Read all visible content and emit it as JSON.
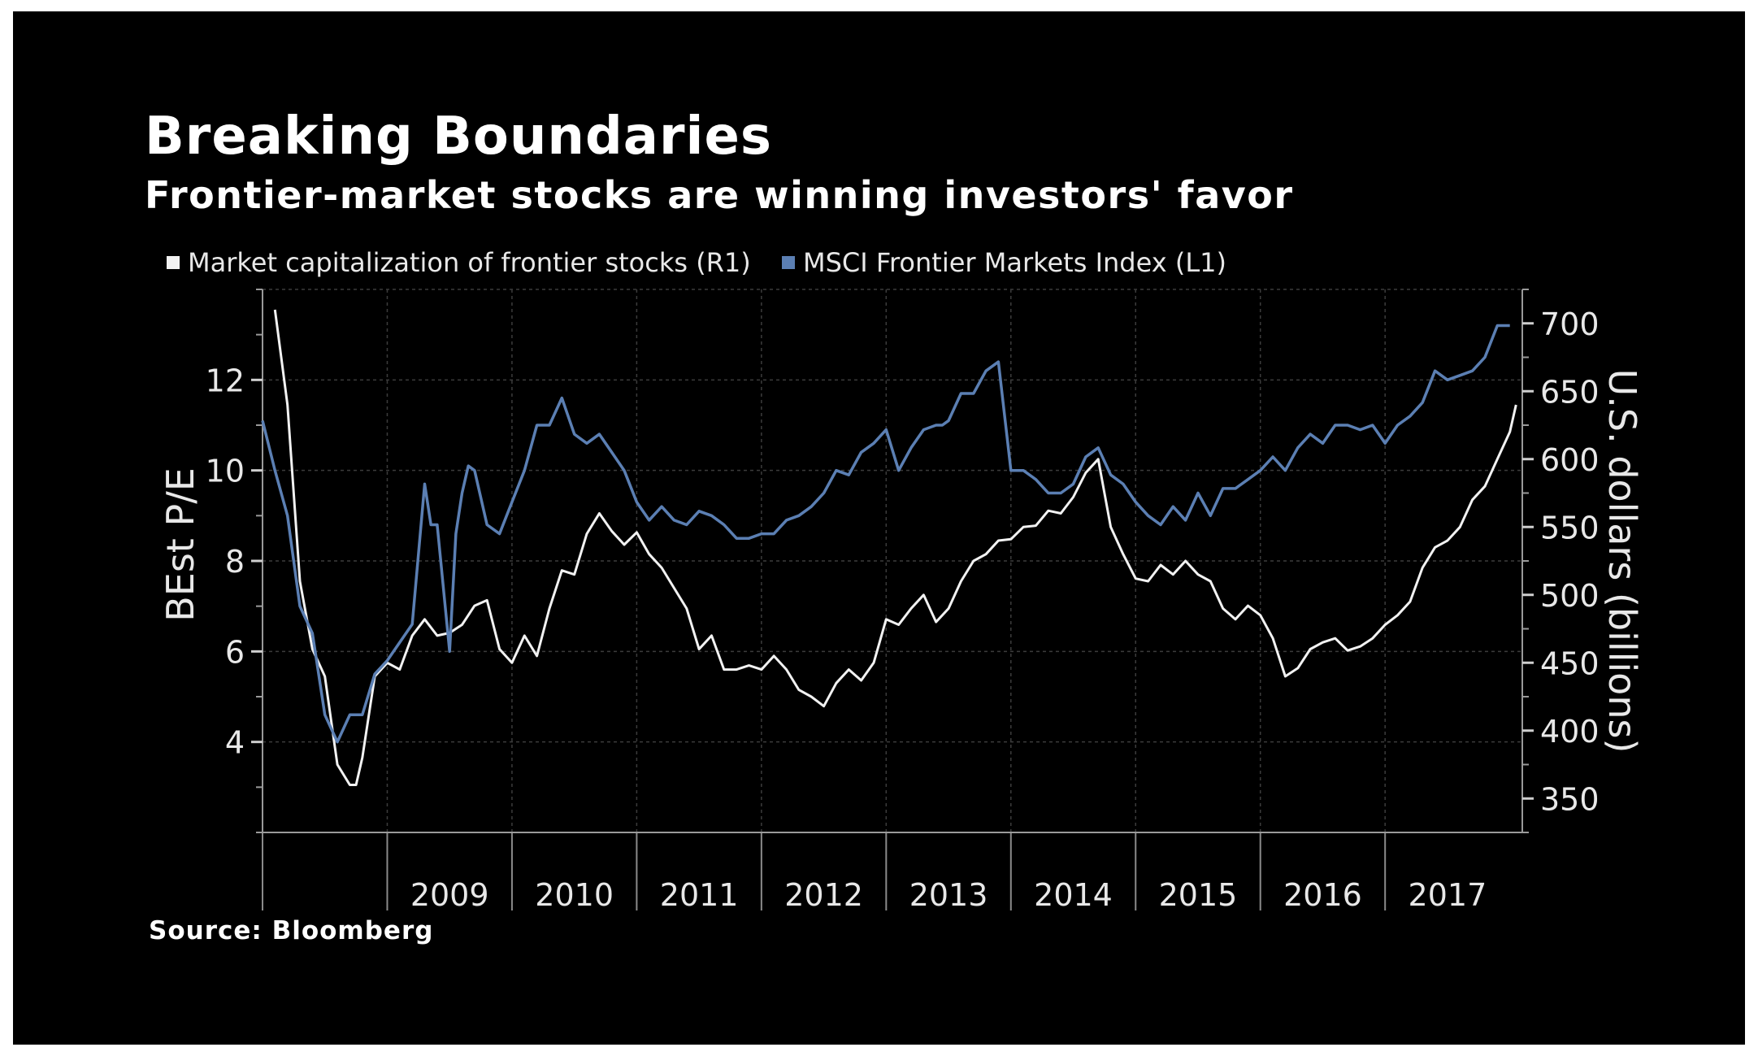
{
  "chart_data": {
    "type": "line",
    "title": "Breaking Boundaries",
    "subtitle": "Frontier-market stocks are winning investors' favor",
    "source": "Source: Bloomberg",
    "left_axis": {
      "label": "BEst P/E",
      "ticks": [
        "4",
        "6",
        "8",
        "10",
        "12"
      ],
      "ylim": [
        2,
        14
      ]
    },
    "right_axis": {
      "label": "U.S. dollars (billions)",
      "ticks": [
        "350",
        "400",
        "450",
        "500",
        "550",
        "600",
        "650",
        "700"
      ],
      "ylim": [
        325,
        725
      ]
    },
    "x_axis": {
      "ticks": [
        "2009",
        "2010",
        "2011",
        "2012",
        "2013",
        "2014",
        "2015",
        "2016",
        "2017"
      ],
      "xlim": [
        2008.0,
        2018.1
      ]
    },
    "grid": true,
    "series": [
      {
        "name": "Market capitalization of frontier stocks (R1)",
        "axis": "right",
        "color": "#f2f2f2",
        "x": [
          2008.1,
          2008.2,
          2008.3,
          2008.4,
          2008.5,
          2008.6,
          2008.7,
          2008.75,
          2008.8,
          2008.9,
          2009.0,
          2009.1,
          2009.2,
          2009.3,
          2009.4,
          2009.5,
          2009.6,
          2009.7,
          2009.8,
          2009.9,
          2010.0,
          2010.1,
          2010.2,
          2010.3,
          2010.4,
          2010.5,
          2010.6,
          2010.7,
          2010.8,
          2010.9,
          2011.0,
          2011.1,
          2011.2,
          2011.3,
          2011.4,
          2011.5,
          2011.6,
          2011.7,
          2011.8,
          2011.9,
          2012.0,
          2012.1,
          2012.2,
          2012.3,
          2012.4,
          2012.5,
          2012.6,
          2012.7,
          2012.8,
          2012.9,
          2013.0,
          2013.1,
          2013.2,
          2013.3,
          2013.4,
          2013.5,
          2013.6,
          2013.7,
          2013.8,
          2013.9,
          2014.0,
          2014.1,
          2014.2,
          2014.3,
          2014.4,
          2014.5,
          2014.6,
          2014.7,
          2014.8,
          2014.9,
          2015.0,
          2015.1,
          2015.2,
          2015.3,
          2015.4,
          2015.5,
          2015.6,
          2015.7,
          2015.8,
          2015.9,
          2016.0,
          2016.1,
          2016.2,
          2016.3,
          2016.4,
          2016.5,
          2016.6,
          2016.7,
          2016.8,
          2016.9,
          2017.0,
          2017.1,
          2017.2,
          2017.3,
          2017.4,
          2017.5,
          2017.6,
          2017.7,
          2017.8,
          2017.9,
          2018.0,
          2018.05
        ],
        "values": [
          710,
          640,
          510,
          460,
          440,
          375,
          360,
          360,
          380,
          440,
          450,
          445,
          470,
          482,
          470,
          472,
          478,
          492,
          496,
          460,
          450,
          470,
          455,
          490,
          518,
          515,
          545,
          560,
          547,
          537,
          546,
          530,
          520,
          505,
          490,
          460,
          470,
          445,
          445,
          448,
          445,
          455,
          445,
          430,
          425,
          418,
          435,
          445,
          437,
          450,
          482,
          478,
          490,
          500,
          480,
          490,
          510,
          525,
          530,
          540,
          541,
          550,
          551,
          562,
          560,
          572,
          590,
          600,
          550,
          530,
          512,
          510,
          522,
          515,
          525,
          515,
          510,
          490,
          482,
          492,
          485,
          468,
          440,
          446,
          460,
          465,
          468,
          459,
          462,
          468,
          478,
          485,
          495,
          520,
          535,
          540,
          550,
          570,
          580,
          600,
          620,
          640
        ],
        "legend_label": "Market capitalization of frontier stocks (R1)"
      },
      {
        "name": "MSCI Frontier Markets Index (L1)",
        "axis": "left",
        "color": "#5b7fb3",
        "x": [
          2008.0,
          2008.1,
          2008.2,
          2008.3,
          2008.4,
          2008.5,
          2008.6,
          2008.7,
          2008.8,
          2008.9,
          2009.0,
          2009.1,
          2009.2,
          2009.3,
          2009.35,
          2009.4,
          2009.5,
          2009.55,
          2009.6,
          2009.65,
          2009.7,
          2009.8,
          2009.9,
          2010.0,
          2010.1,
          2010.2,
          2010.3,
          2010.4,
          2010.5,
          2010.6,
          2010.7,
          2010.8,
          2010.9,
          2011.0,
          2011.1,
          2011.2,
          2011.3,
          2011.4,
          2011.5,
          2011.6,
          2011.7,
          2011.8,
          2011.9,
          2012.0,
          2012.1,
          2012.2,
          2012.3,
          2012.4,
          2012.5,
          2012.6,
          2012.7,
          2012.8,
          2012.9,
          2013.0,
          2013.1,
          2013.2,
          2013.3,
          2013.4,
          2013.45,
          2013.5,
          2013.6,
          2013.7,
          2013.8,
          2013.9,
          2014.0,
          2014.1,
          2014.2,
          2014.3,
          2014.4,
          2014.5,
          2014.6,
          2014.7,
          2014.8,
          2014.9,
          2015.0,
          2015.1,
          2015.2,
          2015.3,
          2015.4,
          2015.5,
          2015.6,
          2015.7,
          2015.8,
          2015.9,
          2016.0,
          2016.1,
          2016.2,
          2016.3,
          2016.4,
          2016.5,
          2016.6,
          2016.7,
          2016.8,
          2016.9,
          2017.0,
          2017.1,
          2017.2,
          2017.3,
          2017.4,
          2017.5,
          2017.6,
          2017.7,
          2017.8,
          2017.9,
          2018.0
        ],
        "values": [
          11.1,
          10.0,
          9.0,
          7.0,
          6.4,
          4.6,
          4.0,
          4.6,
          4.6,
          5.5,
          5.8,
          6.2,
          6.6,
          9.7,
          8.8,
          8.8,
          6.0,
          8.6,
          9.5,
          10.1,
          10.0,
          8.8,
          8.6,
          9.3,
          10.0,
          11.0,
          11.0,
          11.6,
          10.8,
          10.6,
          10.8,
          10.4,
          10.0,
          9.3,
          8.9,
          9.2,
          8.9,
          8.8,
          9.1,
          9.0,
          8.8,
          8.5,
          8.5,
          8.6,
          8.6,
          8.9,
          9.0,
          9.2,
          9.5,
          10.0,
          9.9,
          10.4,
          10.6,
          10.9,
          10.0,
          10.5,
          10.9,
          11.0,
          11.0,
          11.1,
          11.7,
          11.7,
          12.2,
          12.4,
          10.0,
          10.0,
          9.8,
          9.5,
          9.5,
          9.7,
          10.3,
          10.5,
          9.9,
          9.7,
          9.3,
          9.0,
          8.8,
          9.2,
          8.9,
          9.5,
          9.0,
          9.6,
          9.6,
          9.8,
          10.0,
          10.3,
          10.0,
          10.5,
          10.8,
          10.6,
          11.0,
          11.0,
          10.9,
          11.0,
          10.6,
          11.0,
          11.2,
          11.5,
          12.2,
          12.0,
          12.1,
          12.2,
          12.5,
          13.2,
          13.2
        ],
        "legend_label": "MSCI Frontier Markets Index (L1)"
      }
    ]
  }
}
